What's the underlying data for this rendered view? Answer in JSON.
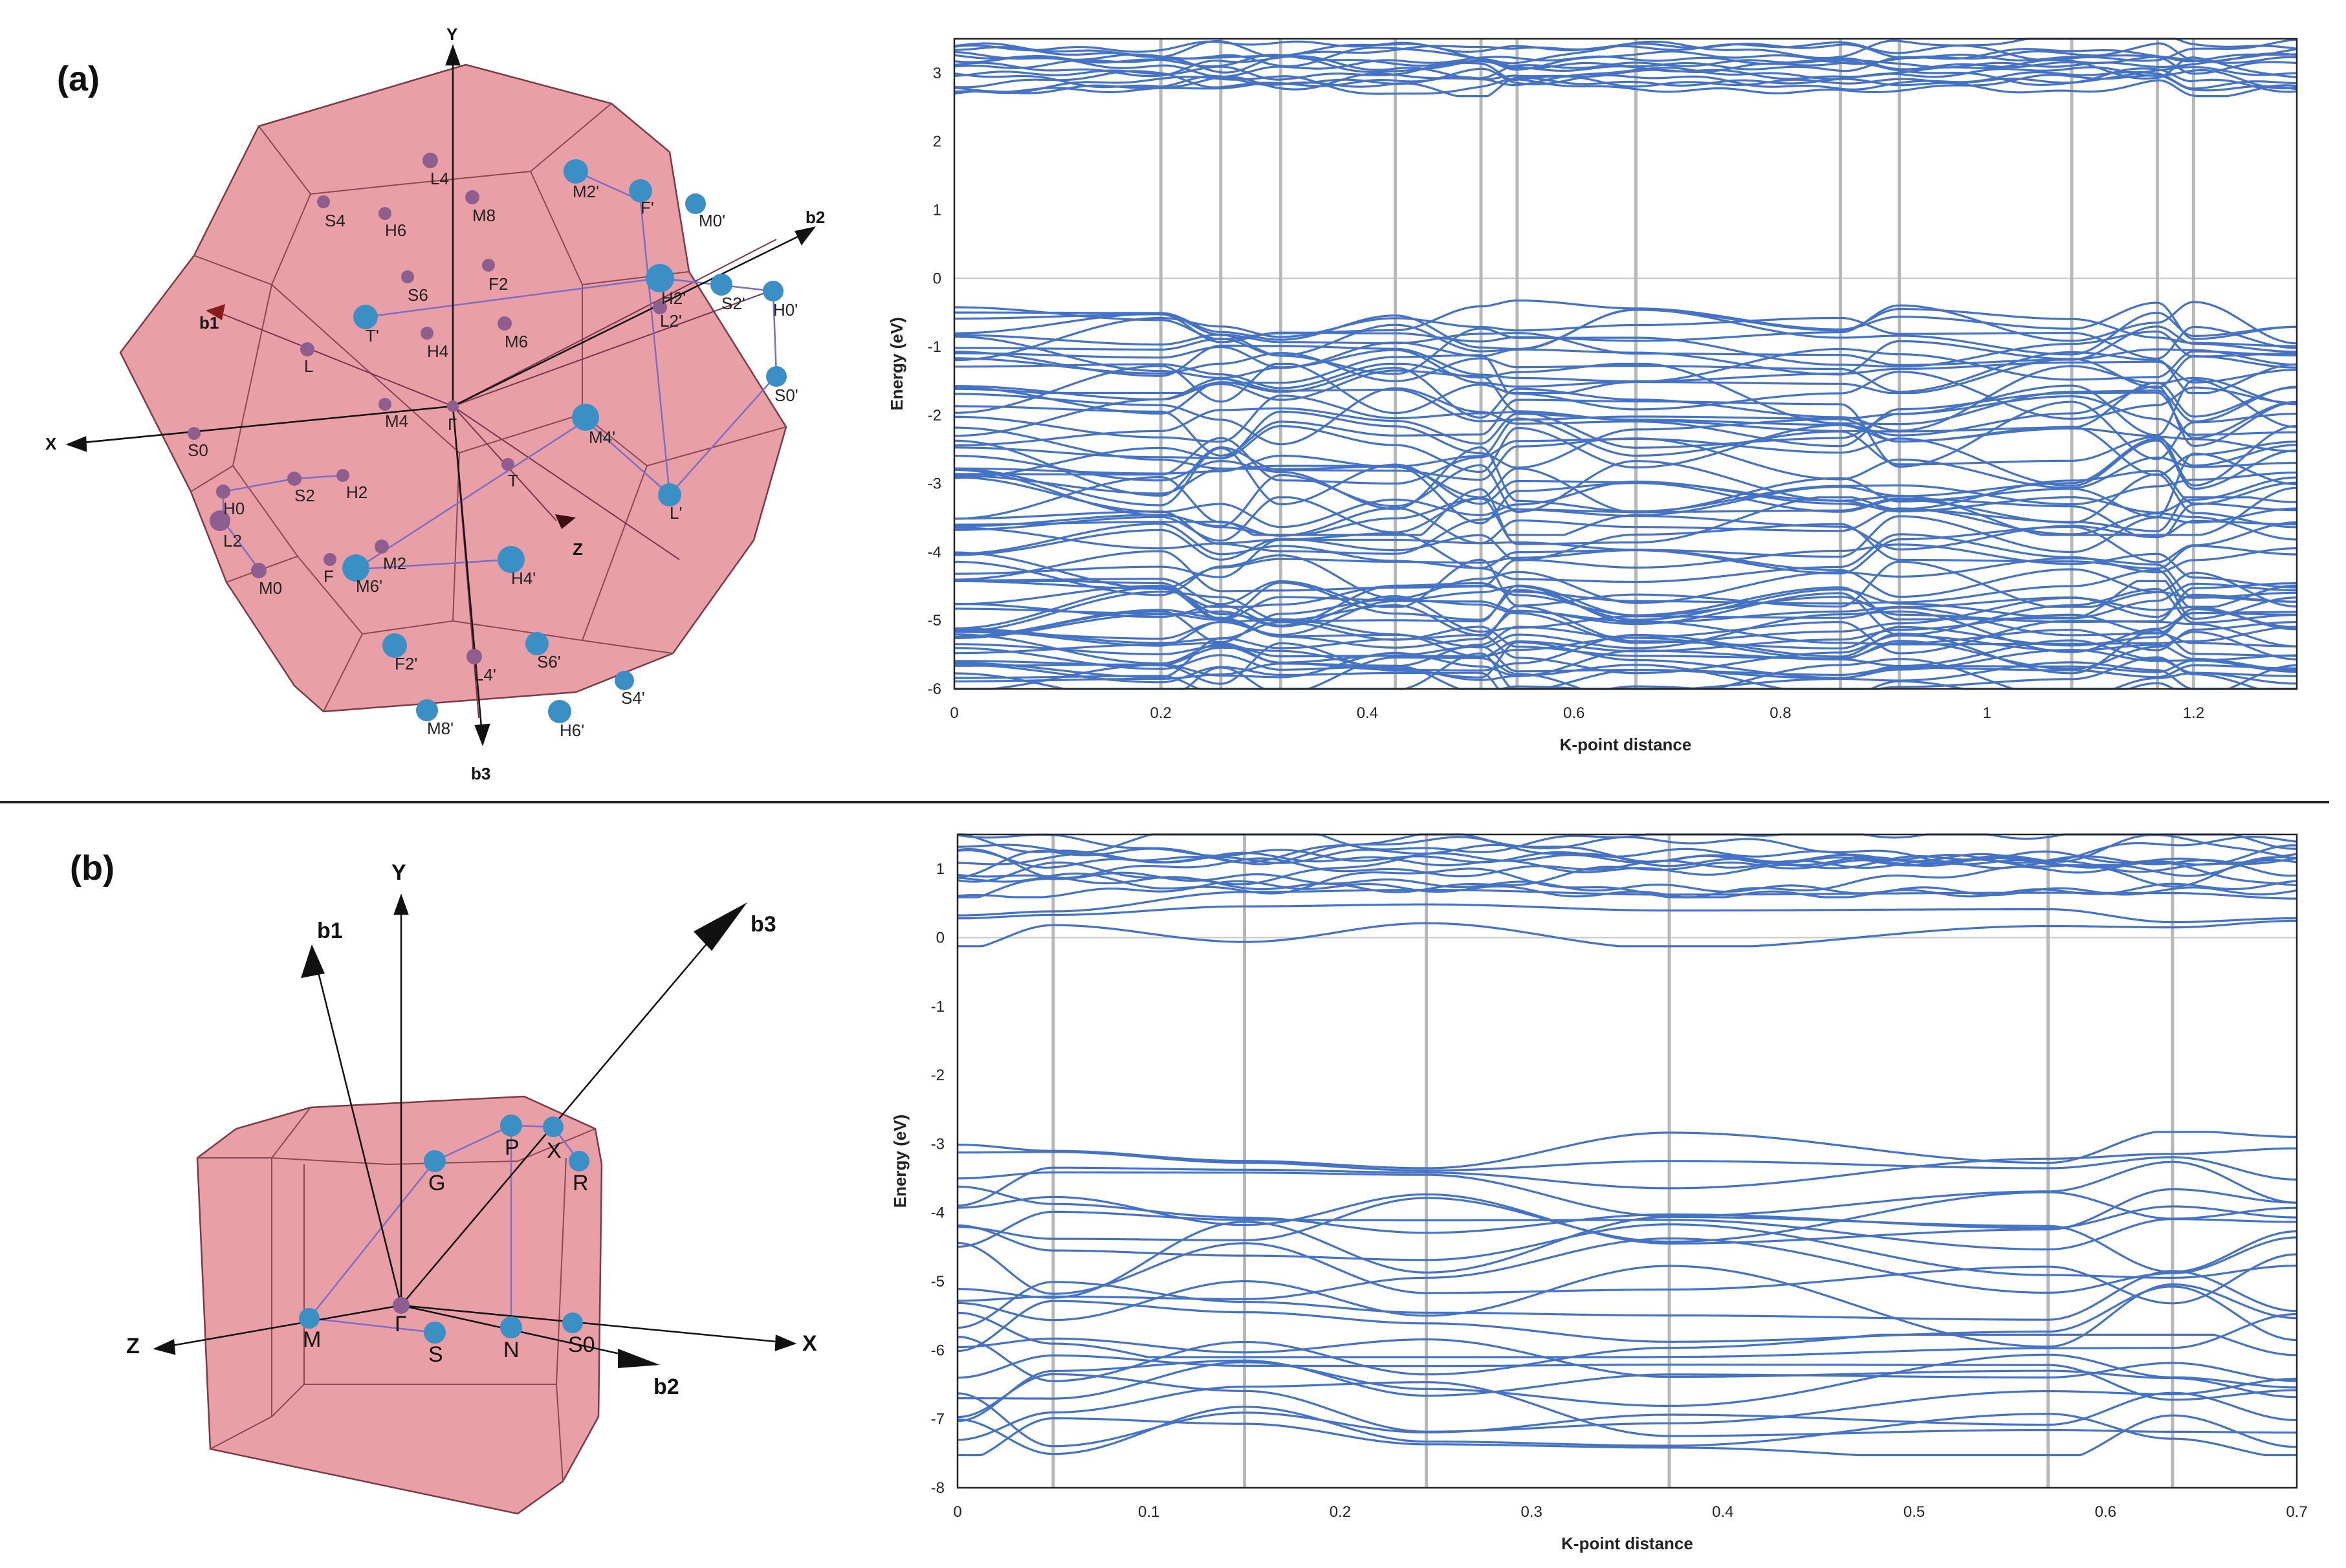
{
  "panel_a": {
    "label": "(a)",
    "bz_axes": {
      "x": "X",
      "y": "Y",
      "z": "Z",
      "b1": "b1",
      "b2": "b2",
      "b3": "b3"
    },
    "bz_points": {
      "gamma": "Γ",
      "L4": "L4",
      "M2p": "M2'",
      "Fp": "F'",
      "M0p": "M0'",
      "S4": "S4",
      "H6": "H6",
      "M8": "M8",
      "F2": "F2",
      "S6": "S6",
      "H2p": "H2'",
      "S2p": "S2'",
      "H0p": "H0'",
      "L2p": "L2'",
      "Tp": "T'",
      "H4": "H4",
      "M6": "M6",
      "L": "L",
      "S0p": "S0'",
      "M4": "M4",
      "M4p": "M4'",
      "S0": "S0",
      "T": "T",
      "H0": "H0",
      "S2": "S2",
      "H2": "H2",
      "Lp": "L'",
      "L2": "L2",
      "F": "F",
      "M2": "M2",
      "M6p": "M6'",
      "H4p": "H4'",
      "M0": "M0",
      "F2p": "F2'",
      "L4p": "L4'",
      "S6p": "S6'",
      "S4p": "S4'",
      "M8p": "M8'",
      "H6p": "H6'"
    },
    "chart_data": {
      "type": "line",
      "title": "",
      "xlabel": "K-point distance",
      "ylabel": "Energy (eV)",
      "xlim": [
        0,
        1.3
      ],
      "ylim": [
        -6,
        3.5
      ],
      "xticks": [
        "0",
        "0.2",
        "0.4",
        "0.6",
        "0.8",
        "1",
        "1.2"
      ],
      "yticks": [
        "3",
        "2",
        "1",
        "0",
        "-1",
        "-2",
        "-3",
        "-4",
        "-5",
        "-6"
      ],
      "high_symmetry_x": [
        0.2,
        0.258,
        0.316,
        0.427,
        0.51,
        0.545,
        0.66,
        0.858,
        0.915,
        1.082,
        1.165,
        1.2
      ],
      "fermi_level": 0,
      "conduction_band_range": [
        2.75,
        3.45
      ],
      "valence_band_top": -0.45,
      "valence_band_range": [
        -6,
        -0.45
      ],
      "band_color": "#4472c4"
    }
  },
  "panel_b": {
    "label": "(b)",
    "bz_axes": {
      "x": "X",
      "y": "Y",
      "z": "Z",
      "b1": "b1",
      "b2": "b2",
      "b3": "b3"
    },
    "bz_points": {
      "gamma": "Γ",
      "G": "G",
      "P": "P",
      "X": "X",
      "R": "R",
      "M": "M",
      "S": "S",
      "N": "N",
      "S0": "S0"
    },
    "chart_data": {
      "type": "line",
      "title": "",
      "xlabel": "K-point distance",
      "ylabel": "Energy (eV)",
      "xlim": [
        0,
        0.7
      ],
      "ylim": [
        -8,
        1.5
      ],
      "xticks": [
        "0",
        "0.1",
        "0.2",
        "0.3",
        "0.4",
        "0.5",
        "0.6",
        "0.7"
      ],
      "yticks": [
        "1",
        "0",
        "-1",
        "-2",
        "-3",
        "-4",
        "-5",
        "-6",
        "-7",
        "-8"
      ],
      "high_symmetry_x": [
        0.05,
        0.15,
        0.245,
        0.372,
        0.57,
        0.635
      ],
      "fermi_level": 0,
      "conduction_band_range": [
        0,
        1.5
      ],
      "valence_band_top": -3.05,
      "valence_band_range": [
        -7.3,
        -3.05
      ],
      "band_color": "#4472c4"
    }
  }
}
